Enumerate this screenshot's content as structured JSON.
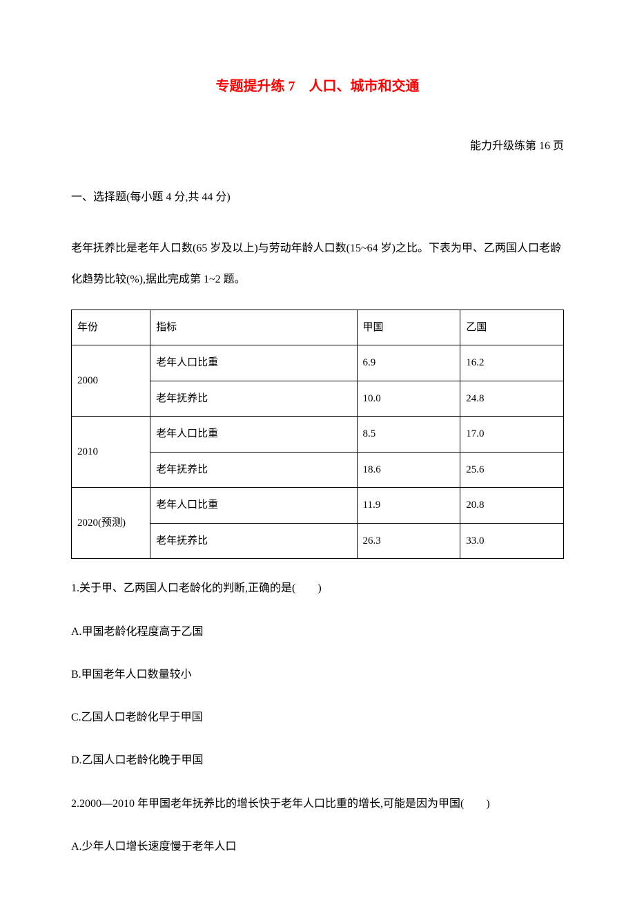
{
  "title": "专题提升练 7　人口、城市和交通",
  "subtitle": "　能力升级练第 16 页",
  "section_heading": "一、选择题(每小题 4 分,共 44 分)",
  "intro": "老年抚养比是老年人口数(65 岁及以上)与劳动年龄人口数(15~64 岁)之比。下表为甲、乙两国人口老龄化趋势比较(%),据此完成第 1~2 题。",
  "table": {
    "header": {
      "year": "年份",
      "indicator": "指标",
      "country_a": "甲国",
      "country_b": "乙国"
    },
    "rows": [
      {
        "year": "2000",
        "indicators": [
          {
            "label": "老年人口比重",
            "a": "6.9",
            "b": "16.2"
          },
          {
            "label": "老年抚养比",
            "a": "10.0",
            "b": "24.8"
          }
        ]
      },
      {
        "year": "2010",
        "indicators": [
          {
            "label": "老年人口比重",
            "a": "8.5",
            "b": "17.0"
          },
          {
            "label": "老年抚养比",
            "a": "18.6",
            "b": "25.6"
          }
        ]
      },
      {
        "year": "2020(预测)",
        "indicators": [
          {
            "label": "老年人口比重",
            "a": "11.9",
            "b": "20.8"
          },
          {
            "label": "老年抚养比",
            "a": "26.3",
            "b": "33.0"
          }
        ]
      }
    ]
  },
  "questions": [
    {
      "stem": "1.关于甲、乙两国人口老龄化的判断,正确的是(　　)",
      "options": [
        "A.甲国老龄化程度高于乙国",
        "B.甲国老年人口数量较小",
        "C.乙国人口老龄化早于甲国",
        "D.乙国人口老龄化晚于甲国"
      ]
    },
    {
      "stem": "2.2000—2010 年甲国老年抚养比的增长快于老年人口比重的增长,可能是因为甲国(　　)",
      "options": [
        "A.少年人口增长速度慢于老年人口"
      ]
    }
  ],
  "colors": {
    "title_color": "#ff0000",
    "text_color": "#000000",
    "background_color": "#ffffff",
    "border_color": "#000000"
  },
  "typography": {
    "title_fontsize": 20,
    "body_fontsize": 16,
    "table_fontsize": 15,
    "font_family": "SimSun"
  }
}
